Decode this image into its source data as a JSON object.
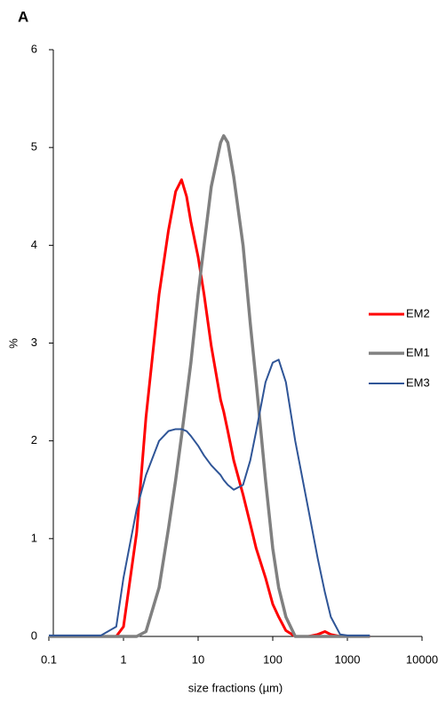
{
  "chart_data": {
    "type": "line",
    "title": "A",
    "xlabel": "size fractions (µm)",
    "ylabel": "%",
    "xscale": "log",
    "legend": "right",
    "x": [
      0.1,
      0.5,
      0.8,
      1,
      1.5,
      2,
      3,
      4,
      5,
      6,
      7,
      8,
      10,
      12,
      15,
      20,
      22,
      25,
      30,
      40,
      50,
      60,
      80,
      100,
      120,
      150,
      200,
      300,
      400,
      500,
      600,
      800,
      1000,
      2000
    ],
    "series": [
      {
        "name": "EM2",
        "color": "#ff0000",
        "values": [
          0,
          0,
          0,
          0.1,
          1.06,
          2.24,
          3.5,
          4.15,
          4.55,
          4.67,
          4.5,
          4.24,
          3.88,
          3.5,
          2.97,
          2.42,
          2.3,
          2.1,
          1.8,
          1.45,
          1.15,
          0.9,
          0.6,
          0.33,
          0.2,
          0.06,
          0,
          0,
          0.02,
          0.05,
          0.02,
          0,
          0,
          0
        ]
      },
      {
        "name": "EM1",
        "color": "#808080",
        "values": [
          0,
          0,
          0,
          0,
          0,
          0.05,
          0.5,
          1.1,
          1.6,
          2.05,
          2.45,
          2.8,
          3.5,
          4.0,
          4.6,
          5.05,
          5.12,
          5.05,
          4.7,
          4.0,
          3.2,
          2.6,
          1.6,
          0.9,
          0.5,
          0.2,
          0,
          0,
          0,
          0,
          0,
          0,
          0,
          0
        ]
      },
      {
        "name": "EM3",
        "color": "#2f5597",
        "values": [
          0.01,
          0.01,
          0.1,
          0.6,
          1.3,
          1.65,
          2.0,
          2.1,
          2.12,
          2.12,
          2.1,
          2.05,
          1.95,
          1.85,
          1.75,
          1.65,
          1.6,
          1.55,
          1.5,
          1.55,
          1.8,
          2.1,
          2.6,
          2.8,
          2.83,
          2.6,
          2.0,
          1.3,
          0.8,
          0.45,
          0.2,
          0.02,
          0.01,
          0.01
        ]
      }
    ],
    "xlim": [
      0.1,
      10000
    ],
    "xticks": [
      0.1,
      1,
      10,
      100,
      1000,
      10000
    ],
    "ylim": [
      0,
      6
    ],
    "yticks": [
      0,
      1,
      2,
      3,
      4,
      5,
      6
    ]
  }
}
